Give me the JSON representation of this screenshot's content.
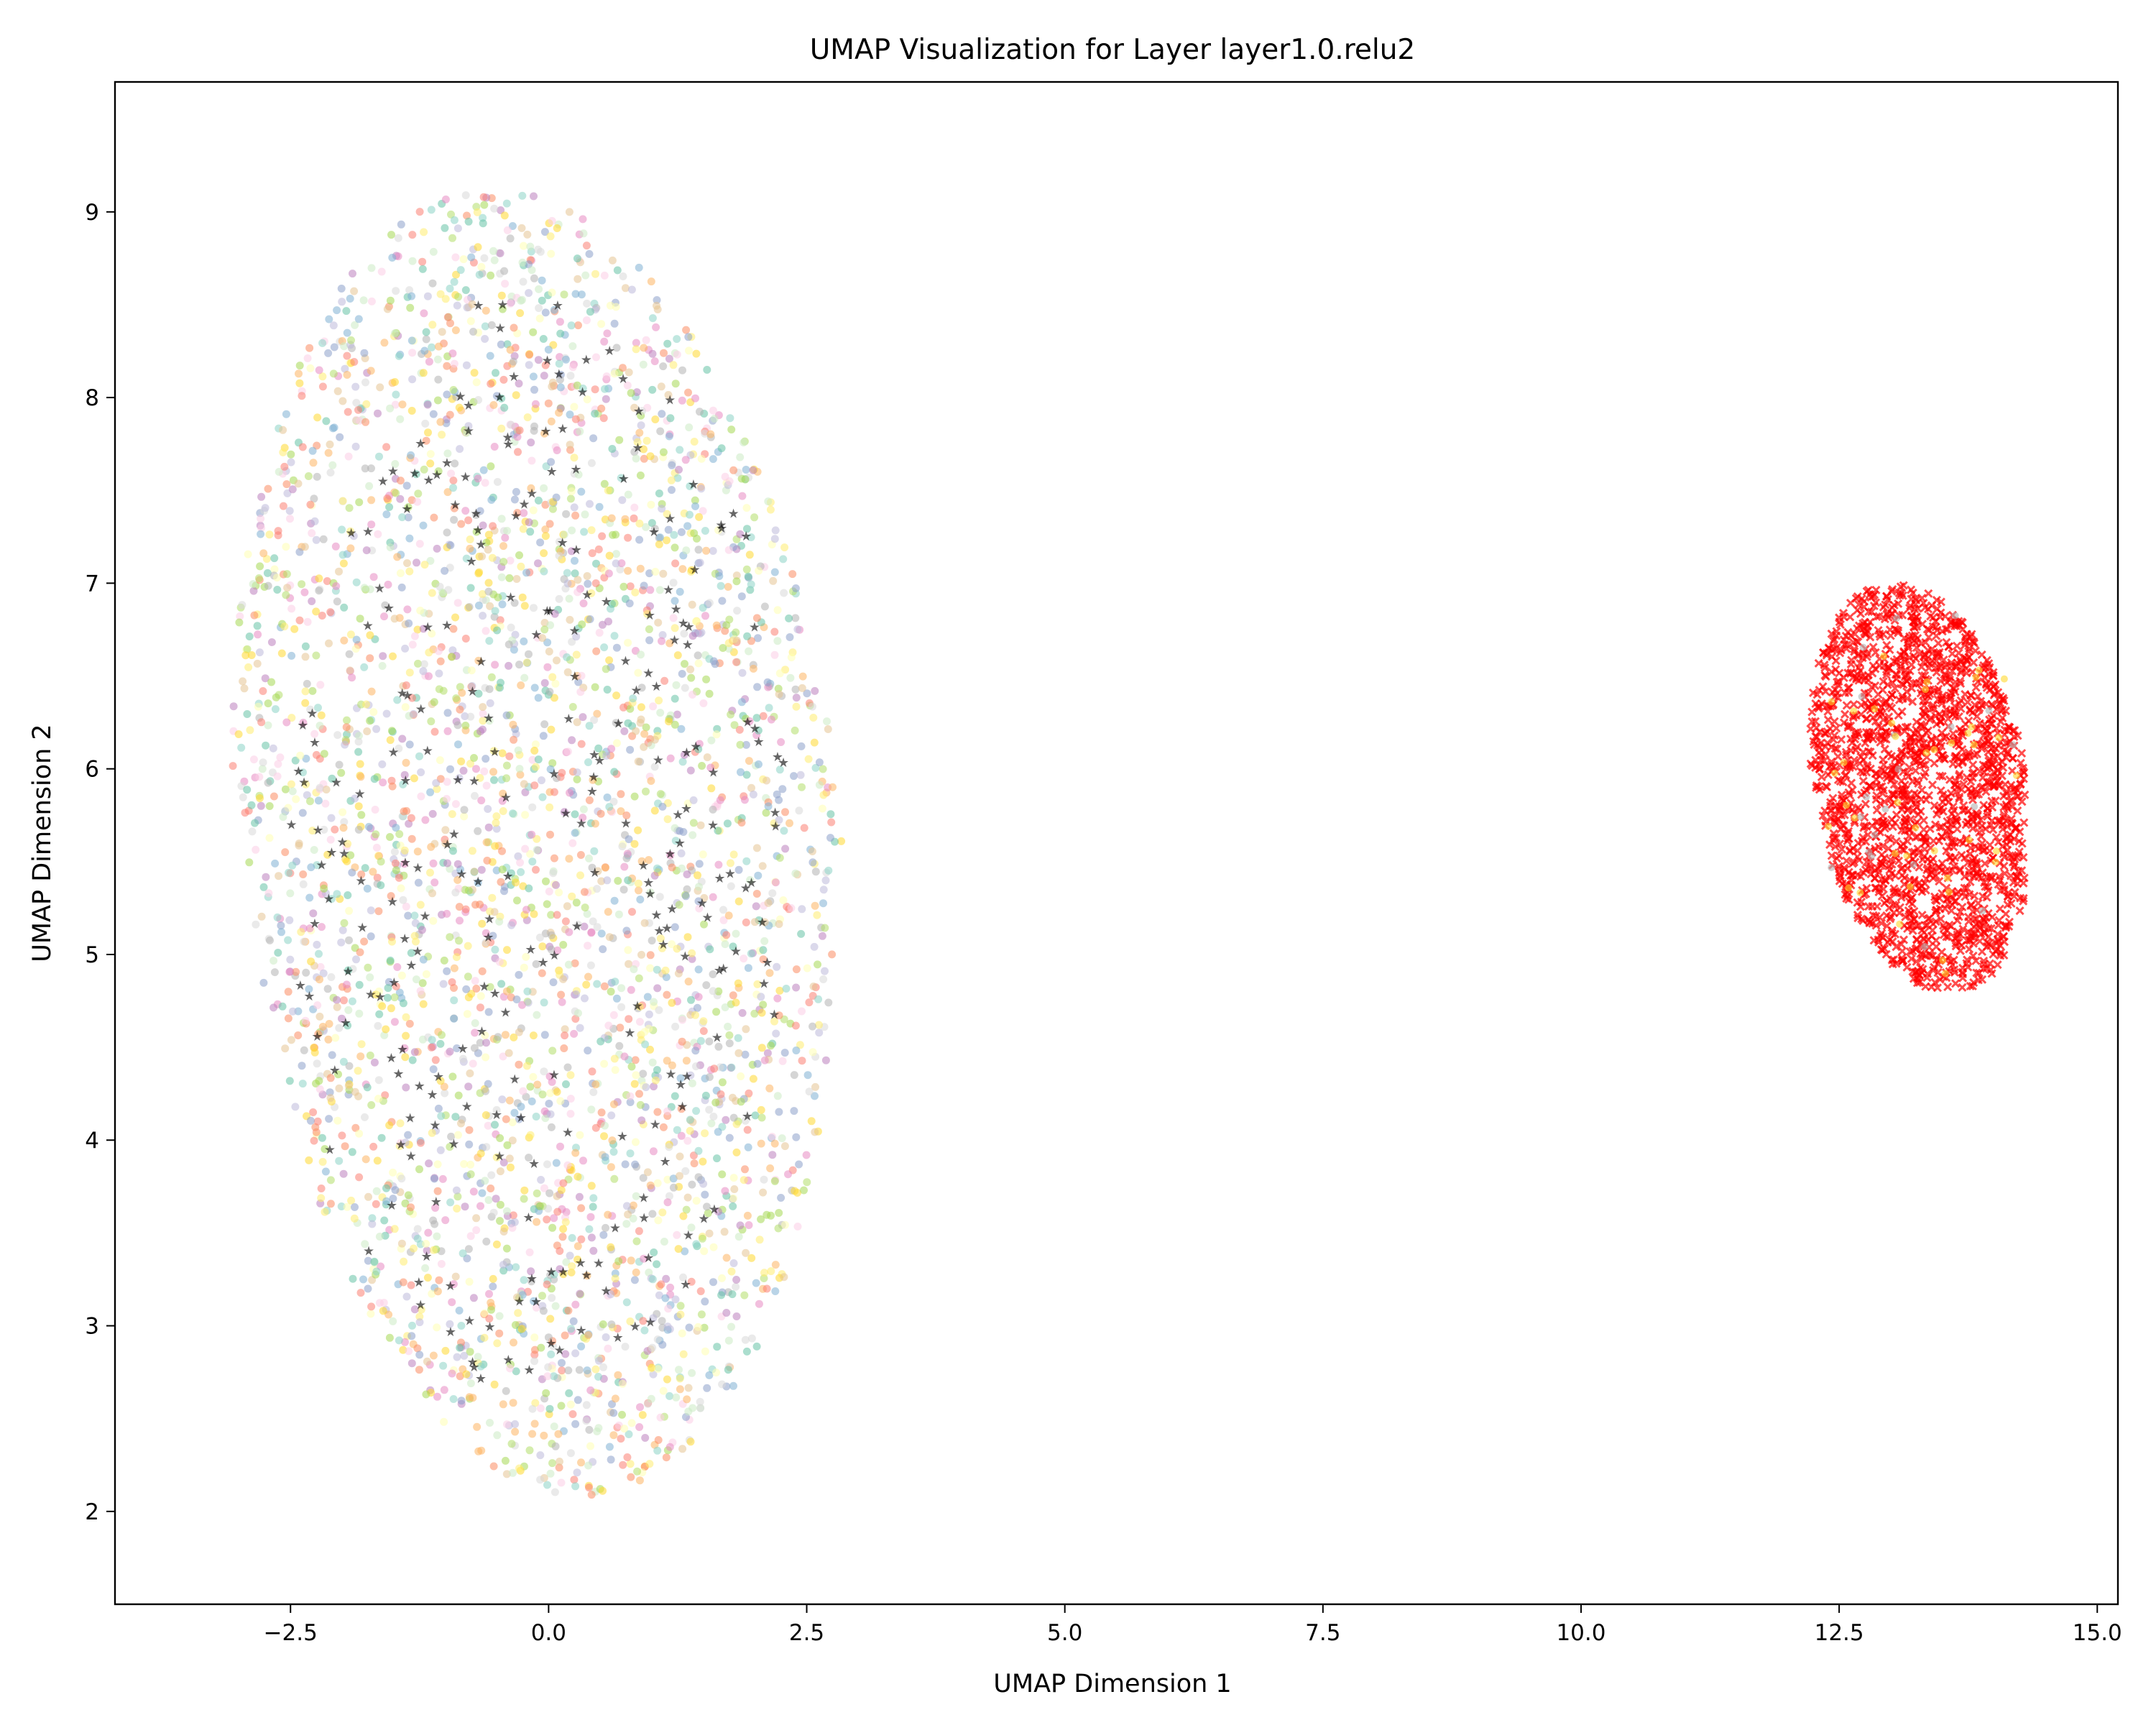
{
  "chart_data": {
    "type": "scatter",
    "title": "UMAP Visualization for Layer layer1.0.relu2",
    "xlabel": "UMAP Dimension 1",
    "ylabel": "UMAP Dimension 2",
    "xlim": [
      -4.2,
      15.2
    ],
    "ylim": [
      1.5,
      9.7
    ],
    "xticks": [
      -2.5,
      0.0,
      2.5,
      5.0,
      7.5,
      10.0,
      12.5,
      15.0
    ],
    "xtick_labels": [
      "−2.5",
      "0.0",
      "2.5",
      "5.0",
      "7.5",
      "10.0",
      "12.5",
      "15.0"
    ],
    "yticks": [
      2,
      3,
      4,
      5,
      6,
      7,
      8,
      9
    ],
    "ytick_labels": [
      "2",
      "3",
      "4",
      "5",
      "6",
      "7",
      "8",
      "9"
    ],
    "grid": false,
    "legend": "none",
    "clusters": [
      {
        "marker": "circle",
        "x_range": [
          -3.3,
          3.1
        ],
        "y_range": [
          1.9,
          9.3
        ],
        "center": [
          -0.1,
          5.6
        ],
        "colors": [
          "#8dd3c7",
          "#ffffb3",
          "#bebada",
          "#fb8072",
          "#80b1d3",
          "#fdb462",
          "#b3de69",
          "#fccde5",
          "#d9d9d9",
          "#bc80bd",
          "#ccebc5",
          "#ffed6f",
          "#e78ac3",
          "#a6d854",
          "#ffd92f",
          "#e5c494",
          "#b3b3b3",
          "#8da0cb",
          "#66c2a5",
          "#fc8d62"
        ]
      },
      {
        "marker": "star",
        "color": "#000000",
        "x_range": [
          -2.5,
          2.6
        ],
        "y_range": [
          2.1,
          8.4
        ]
      },
      {
        "marker": "x",
        "color": "#ff0000",
        "x_range": [
          12.2,
          14.3
        ],
        "y_range": [
          4.8,
          7.0
        ],
        "center": [
          13.3,
          5.9
        ]
      }
    ]
  }
}
